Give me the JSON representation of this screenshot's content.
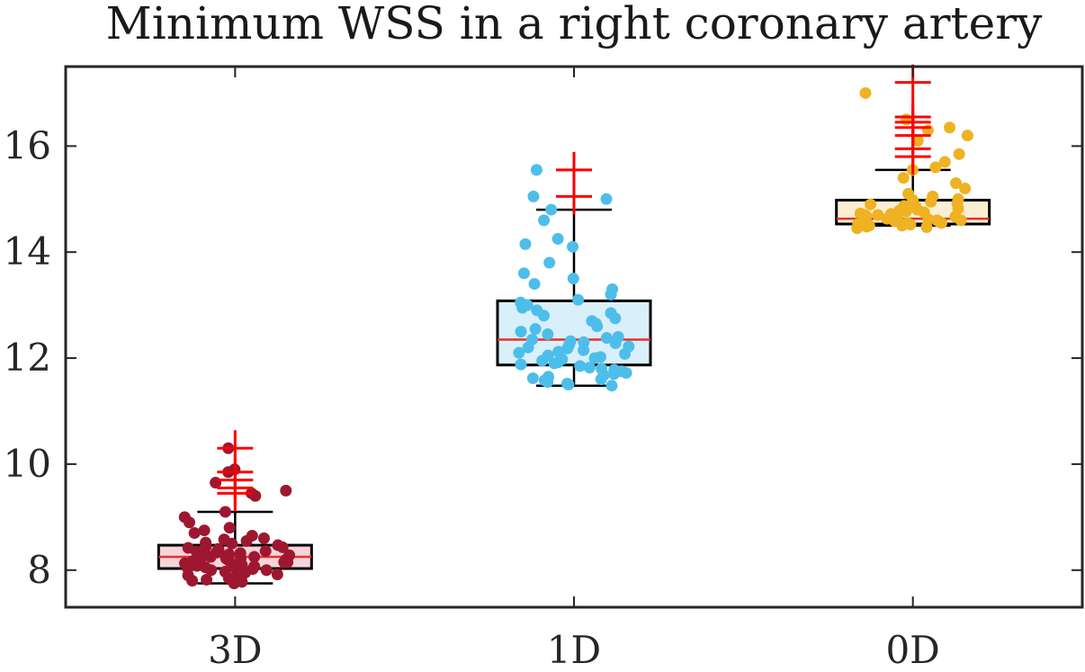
{
  "chart_data": {
    "type": "boxplot",
    "title": "Minimum WSS in a right coronary artery",
    "xlabel": "",
    "ylabel": "",
    "ylim": [
      7.3,
      17.5
    ],
    "yticks": [
      8,
      10,
      12,
      14,
      16
    ],
    "categories": [
      "3D",
      "1D",
      "0D"
    ],
    "grid": false,
    "legend": "none",
    "groups": [
      {
        "label": "3D",
        "color": "#9e1730",
        "box_fill": "#f6d4d9",
        "whisker_low": 7.75,
        "q1": 8.03,
        "median": 8.25,
        "q3": 8.47,
        "whisker_high": 9.1,
        "outliers": [
          9.45,
          9.55,
          9.7,
          9.85,
          10.3
        ],
        "points": [
          7.75,
          7.78,
          7.8,
          7.82,
          7.85,
          7.88,
          7.9,
          7.92,
          7.95,
          7.97,
          8.0,
          8.0,
          8.02,
          8.03,
          8.05,
          8.05,
          8.07,
          8.08,
          8.1,
          8.1,
          8.12,
          8.13,
          8.15,
          8.15,
          8.17,
          8.18,
          8.2,
          8.2,
          8.22,
          8.23,
          8.25,
          8.25,
          8.27,
          8.28,
          8.3,
          8.3,
          8.32,
          8.33,
          8.35,
          8.36,
          8.38,
          8.4,
          8.42,
          8.43,
          8.45,
          8.47,
          8.5,
          8.52,
          8.55,
          8.58,
          8.6,
          8.65,
          8.7,
          8.75,
          8.8,
          8.9,
          9.0,
          9.1,
          9.4,
          9.45,
          9.5,
          9.65,
          9.85,
          9.9,
          10.3
        ]
      },
      {
        "label": "1D",
        "color": "#4dbeea",
        "box_fill": "#d9effa",
        "whisker_low": 11.48,
        "q1": 11.87,
        "median": 12.35,
        "q3": 13.08,
        "whisker_high": 14.8,
        "outliers": [
          15.05,
          15.55
        ],
        "points": [
          11.48,
          11.5,
          11.52,
          11.55,
          11.58,
          11.6,
          11.62,
          11.65,
          11.68,
          11.7,
          11.72,
          11.75,
          11.78,
          11.8,
          11.82,
          11.85,
          11.88,
          11.9,
          11.92,
          11.95,
          11.98,
          12.0,
          12.02,
          12.05,
          12.08,
          12.1,
          12.12,
          12.15,
          12.18,
          12.2,
          12.22,
          12.25,
          12.28,
          12.3,
          12.32,
          12.35,
          12.38,
          12.4,
          12.45,
          12.5,
          12.55,
          12.6,
          12.65,
          12.7,
          12.75,
          12.8,
          12.85,
          12.9,
          12.95,
          13.0,
          13.05,
          13.1,
          13.2,
          13.3,
          13.4,
          13.5,
          13.6,
          13.8,
          14.1,
          14.15,
          14.25,
          14.6,
          14.8,
          15.0,
          15.05,
          15.55
        ]
      },
      {
        "label": "0D",
        "color": "#eeb222",
        "box_fill": "#fbefd3",
        "whisker_low": 14.5,
        "q1": 14.53,
        "median": 14.63,
        "q3": 14.98,
        "whisker_high": 15.55,
        "outliers": [
          15.8,
          15.95,
          16.2,
          16.35,
          16.45,
          16.55,
          17.2
        ],
        "points": [
          14.45,
          14.47,
          14.48,
          14.5,
          14.5,
          14.52,
          14.52,
          14.53,
          14.55,
          14.55,
          14.57,
          14.58,
          14.6,
          14.6,
          14.62,
          14.63,
          14.65,
          14.65,
          14.67,
          14.68,
          14.7,
          14.7,
          14.72,
          14.73,
          14.75,
          14.77,
          14.78,
          14.8,
          14.82,
          14.85,
          14.87,
          14.9,
          14.92,
          14.95,
          14.98,
          15.0,
          15.05,
          15.1,
          15.2,
          15.3,
          15.4,
          15.55,
          15.6,
          15.7,
          15.85,
          16.1,
          16.2,
          16.3,
          16.35,
          16.5,
          17.0
        ]
      }
    ]
  }
}
